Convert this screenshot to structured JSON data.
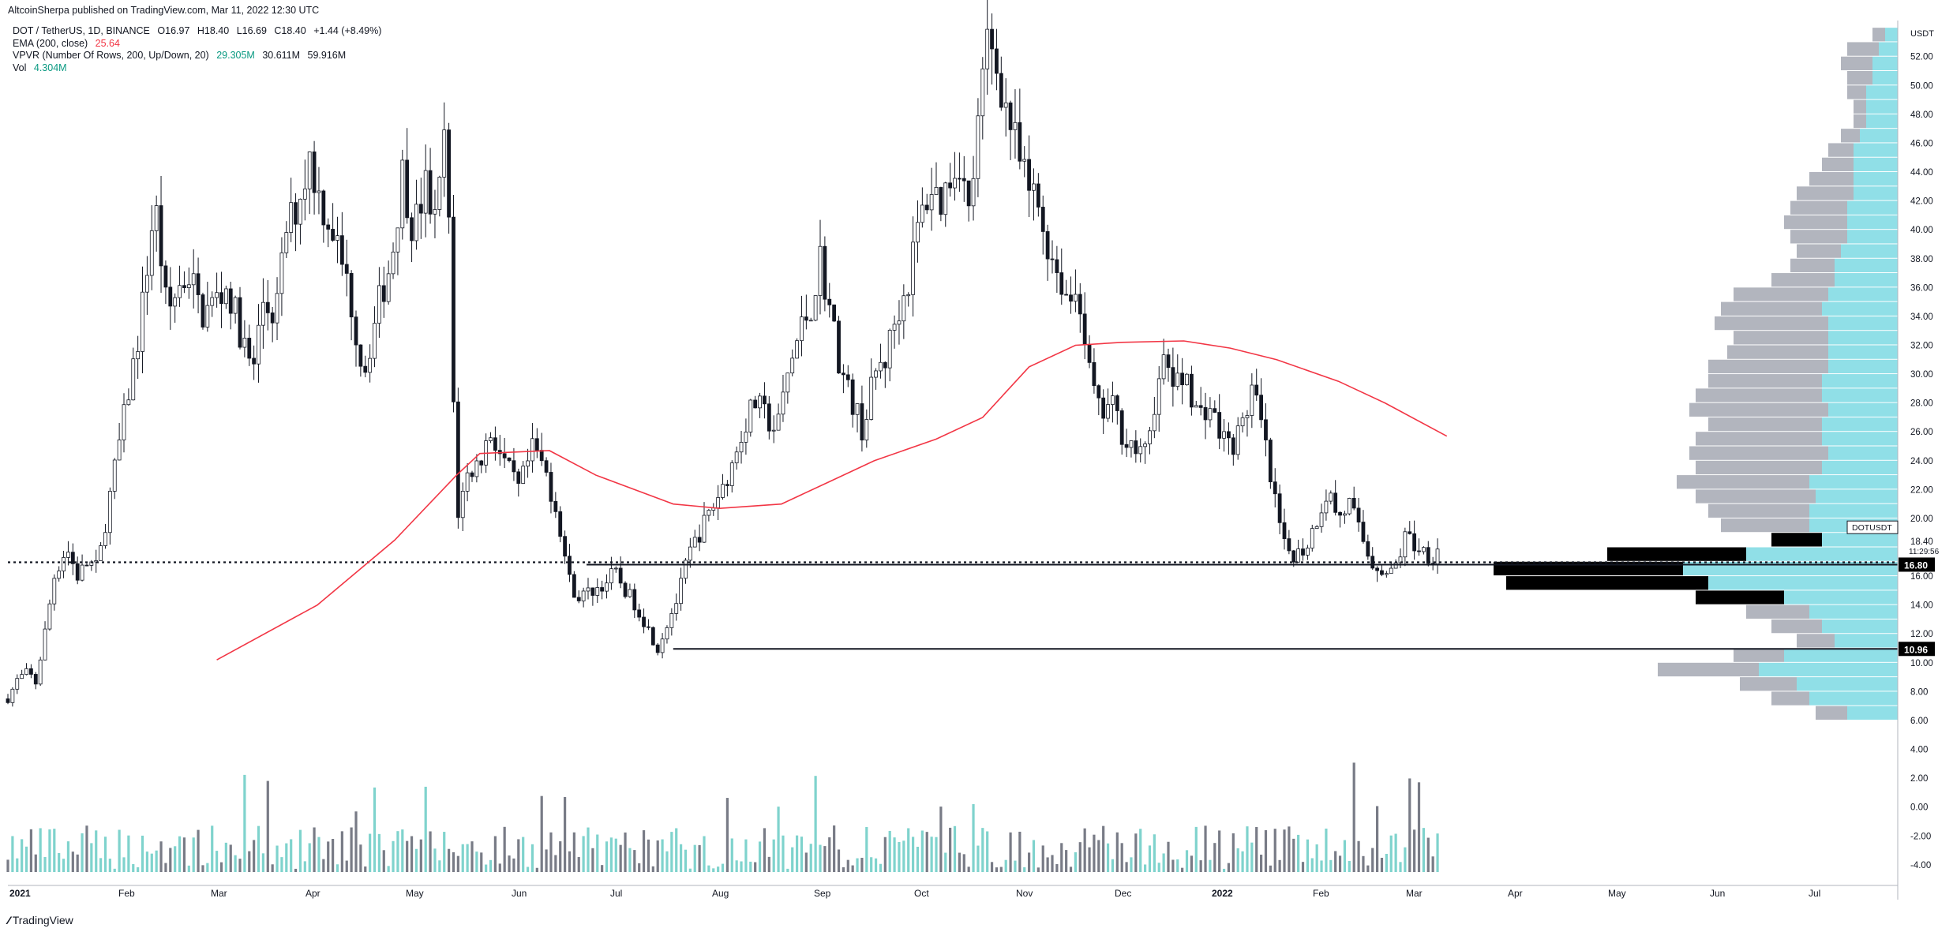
{
  "header": {
    "published": "AltcoinSherpa published on TradingView.com, Mar 11, 2022 12:30 UTC",
    "symbol": "DOT / TetherUS, 1D, BINANCE",
    "ohlc": {
      "open": "O16.97",
      "high": "H18.40",
      "low": "L16.69",
      "close": "C18.40",
      "change": "+1.44 (+8.49%)"
    },
    "ema_label": "EMA (200, close)",
    "ema_value": "25.64",
    "vpvr_label": "VPVR (Number Of Rows, 200, Up/Down, 20)",
    "vpvr_up": "29.305M",
    "vpvr_down": "30.611M",
    "vpvr_total": "59.916M",
    "vol_label": "Vol",
    "vol_value": "4.304M"
  },
  "footer": {
    "brand": "TradingView"
  },
  "colors": {
    "ema": "#f23645",
    "volume_up": "#7fd3cd",
    "volume_down": "#787b86",
    "vpvr_up": "#7dd9e3",
    "vpvr_down": "#b2b5be",
    "value_area": "#000000"
  },
  "chart_data": {
    "type": "candlestick",
    "symbol": "DOTUSDT",
    "currency": "USDT",
    "timeframe": "1D",
    "x_labels": [
      "2021",
      "Feb",
      "Mar",
      "Apr",
      "May",
      "Jun",
      "Jul",
      "Aug",
      "Sep",
      "Oct",
      "Nov",
      "Dec",
      "2022",
      "Feb",
      "Mar",
      "Apr",
      "May",
      "Jun",
      "Jul"
    ],
    "y_labels": [
      "52.00",
      "50.00",
      "48.00",
      "46.00",
      "44.00",
      "42.00",
      "40.00",
      "38.00",
      "36.00",
      "34.00",
      "32.00",
      "30.00",
      "28.00",
      "26.00",
      "24.00",
      "22.00",
      "20.00",
      "18.40",
      "16.00",
      "14.00",
      "12.00",
      "10.96",
      "10.00",
      "8.00",
      "6.00",
      "4.00",
      "2.00",
      "0.00",
      "-2.00",
      "-4.00"
    ],
    "ylim": [
      -4.5,
      54.5
    ],
    "price_path": [
      [
        0,
        7.5
      ],
      [
        6,
        8.8
      ],
      [
        13,
        9.4
      ],
      [
        18,
        8.6
      ],
      [
        23,
        11.5
      ],
      [
        30,
        16
      ],
      [
        38,
        18
      ],
      [
        45,
        16
      ],
      [
        52,
        17
      ],
      [
        58,
        16.5
      ],
      [
        65,
        21
      ],
      [
        75,
        27
      ],
      [
        85,
        33
      ],
      [
        95,
        42
      ],
      [
        103,
        34
      ],
      [
        110,
        36
      ],
      [
        118,
        37
      ],
      [
        125,
        34
      ],
      [
        133,
        35
      ],
      [
        142,
        36
      ],
      [
        150,
        33
      ],
      [
        158,
        30
      ],
      [
        165,
        35
      ],
      [
        173,
        34
      ],
      [
        180,
        40
      ],
      [
        188,
        42
      ],
      [
        195,
        45
      ],
      [
        202,
        42
      ],
      [
        210,
        40
      ],
      [
        220,
        36
      ],
      [
        230,
        30
      ],
      [
        240,
        35
      ],
      [
        248,
        38
      ],
      [
        255,
        44
      ],
      [
        262,
        40
      ],
      [
        270,
        43
      ],
      [
        277,
        40
      ],
      [
        283,
        48
      ],
      [
        290,
        20
      ],
      [
        297,
        23
      ],
      [
        305,
        24
      ],
      [
        312,
        26
      ],
      [
        320,
        24
      ],
      [
        330,
        22
      ],
      [
        340,
        25
      ],
      [
        348,
        23
      ],
      [
        356,
        20
      ],
      [
        362,
        16
      ],
      [
        368,
        14.5
      ],
      [
        378,
        15
      ],
      [
        386,
        15.5
      ],
      [
        392,
        16.3
      ],
      [
        399,
        15
      ],
      [
        406,
        14
      ],
      [
        413,
        12.5
      ],
      [
        420,
        11
      ],
      [
        427,
        13
      ],
      [
        433,
        14.5
      ],
      [
        440,
        17.5
      ],
      [
        447,
        19
      ],
      [
        454,
        20.5
      ],
      [
        461,
        22
      ],
      [
        469,
        24
      ],
      [
        476,
        26.5
      ],
      [
        483,
        28
      ],
      [
        490,
        27
      ],
      [
        497,
        26
      ],
      [
        504,
        30
      ],
      [
        512,
        33
      ],
      [
        520,
        35
      ],
      [
        525,
        38
      ],
      [
        532,
        34
      ],
      [
        539,
        30
      ],
      [
        546,
        28
      ],
      [
        553,
        26
      ],
      [
        560,
        30
      ],
      [
        567,
        31
      ],
      [
        574,
        34
      ],
      [
        581,
        36
      ],
      [
        588,
        40
      ],
      [
        596,
        43
      ],
      [
        603,
        42
      ],
      [
        610,
        44
      ],
      [
        615,
        45
      ],
      [
        621,
        41
      ],
      [
        628,
        48
      ],
      [
        633,
        53
      ],
      [
        638,
        52
      ],
      [
        644,
        49
      ],
      [
        651,
        46
      ],
      [
        658,
        43
      ],
      [
        665,
        42
      ],
      [
        672,
        39
      ],
      [
        679,
        37
      ],
      [
        686,
        35
      ],
      [
        692,
        36
      ],
      [
        699,
        30
      ],
      [
        706,
        27
      ],
      [
        713,
        28
      ],
      [
        720,
        26
      ],
      [
        727,
        25
      ],
      [
        734,
        24
      ],
      [
        741,
        28
      ],
      [
        748,
        31
      ],
      [
        755,
        29
      ],
      [
        762,
        30
      ],
      [
        769,
        27
      ],
      [
        776,
        28
      ],
      [
        783,
        26
      ],
      [
        790,
        25
      ],
      [
        797,
        26
      ],
      [
        804,
        29
      ],
      [
        811,
        26
      ],
      [
        817,
        22
      ],
      [
        825,
        18
      ],
      [
        832,
        17.5
      ],
      [
        839,
        18
      ],
      [
        846,
        20
      ],
      [
        853,
        22
      ],
      [
        860,
        20
      ],
      [
        867,
        21
      ],
      [
        874,
        19
      ],
      [
        881,
        17
      ],
      [
        888,
        16.5
      ],
      [
        893,
        16
      ],
      [
        898,
        17
      ],
      [
        904,
        19
      ],
      [
        910,
        18
      ],
      [
        916,
        17.8
      ],
      [
        920,
        17.2
      ],
      [
        926,
        18.4
      ]
    ],
    "ema_200": [
      [
        135,
        10.2
      ],
      [
        200,
        14
      ],
      [
        250,
        18.5
      ],
      [
        290,
        23
      ],
      [
        305,
        24.5
      ],
      [
        350,
        24.7
      ],
      [
        380,
        23
      ],
      [
        430,
        21
      ],
      [
        460,
        20.7
      ],
      [
        500,
        21
      ],
      [
        530,
        22.5
      ],
      [
        560,
        24
      ],
      [
        600,
        25.5
      ],
      [
        630,
        27
      ],
      [
        660,
        30.5
      ],
      [
        690,
        32
      ],
      [
        720,
        32.2
      ],
      [
        760,
        32.3
      ],
      [
        790,
        31.8
      ],
      [
        820,
        31
      ],
      [
        860,
        29.5
      ],
      [
        890,
        28
      ],
      [
        930,
        25.7
      ]
    ],
    "support_lines": [
      {
        "price": 16.8,
        "label": "16.80",
        "style": "solid",
        "from": 374
      },
      {
        "price": 10.96,
        "label": "10.96",
        "style": "solid",
        "from": 430
      },
      {
        "price": 16.8,
        "label": "",
        "style": "dotted",
        "from": 0
      }
    ],
    "last_price": {
      "label": "DOTUSDT",
      "price": "18.40",
      "countdown": "11:29:56"
    },
    "volume_axis_min": -4.5,
    "vpvr_profile": [
      [
        6.5,
        40,
        25
      ],
      [
        7.5,
        70,
        30
      ],
      [
        8.5,
        80,
        45
      ],
      [
        9.5,
        110,
        80
      ],
      [
        10.5,
        90,
        40
      ],
      [
        11.5,
        50,
        30
      ],
      [
        12.5,
        60,
        40
      ],
      [
        13.5,
        70,
        50
      ],
      [
        14.5,
        90,
        70
      ],
      [
        15.5,
        150,
        160
      ],
      [
        16.5,
        170,
        150
      ],
      [
        17.5,
        120,
        110
      ],
      [
        18.5,
        60,
        40
      ],
      [
        19.5,
        70,
        70
      ],
      [
        20.5,
        70,
        80
      ],
      [
        21.5,
        65,
        95
      ],
      [
        22.5,
        70,
        105
      ],
      [
        23.5,
        60,
        100
      ],
      [
        24.5,
        55,
        110
      ],
      [
        25.5,
        60,
        100
      ],
      [
        26.5,
        60,
        90
      ],
      [
        27.5,
        55,
        110
      ],
      [
        28.5,
        60,
        100
      ],
      [
        29.5,
        60,
        90
      ],
      [
        30.5,
        55,
        95
      ],
      [
        31.5,
        55,
        80
      ],
      [
        32.5,
        55,
        75
      ],
      [
        33.5,
        55,
        90
      ],
      [
        34.5,
        60,
        80
      ],
      [
        35.5,
        55,
        75
      ],
      [
        36.5,
        50,
        50
      ],
      [
        37.5,
        50,
        35
      ],
      [
        38.5,
        45,
        35
      ],
      [
        39.5,
        40,
        45
      ],
      [
        40.5,
        40,
        50
      ],
      [
        41.5,
        40,
        45
      ],
      [
        42.5,
        35,
        45
      ],
      [
        43.5,
        35,
        35
      ],
      [
        44.5,
        35,
        25
      ],
      [
        45.5,
        35,
        20
      ],
      [
        46.5,
        30,
        15
      ],
      [
        47.5,
        25,
        10
      ],
      [
        48.5,
        25,
        10
      ],
      [
        49.5,
        25,
        15
      ],
      [
        50.5,
        20,
        20
      ],
      [
        51.5,
        20,
        25
      ],
      [
        52.5,
        15,
        25
      ],
      [
        53.5,
        10,
        10
      ]
    ]
  }
}
